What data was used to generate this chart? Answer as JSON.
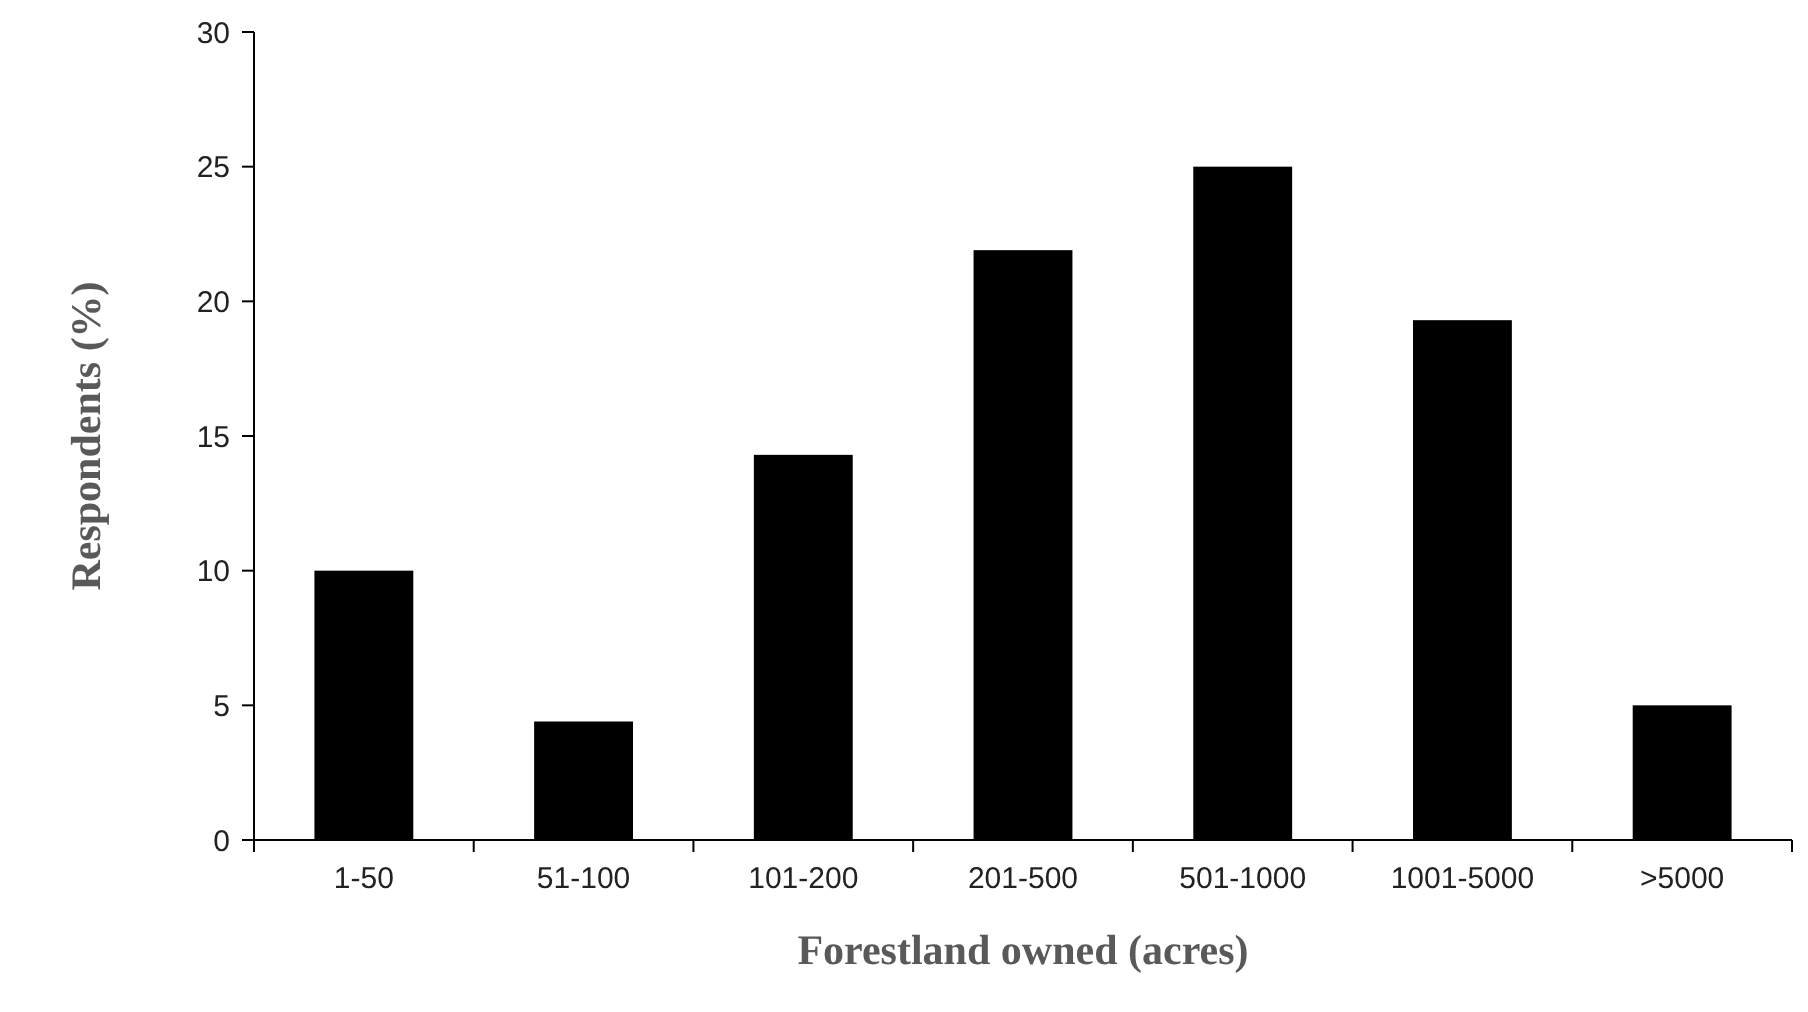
{
  "chart_data": {
    "type": "bar",
    "xlabel": "Forestland owned (acres)",
    "ylabel": "Respondents (%)",
    "categories": [
      "1-50",
      "51-100",
      "101-200",
      "201-500",
      "501-1000",
      "1001-5000",
      ">5000"
    ],
    "values": [
      10,
      4.4,
      14.3,
      21.9,
      25,
      19.3,
      5
    ],
    "color": "#000000",
    "ylim": [
      0,
      30
    ],
    "yticks": [
      0,
      5,
      10,
      15,
      20,
      25,
      30
    ],
    "grid": false
  }
}
